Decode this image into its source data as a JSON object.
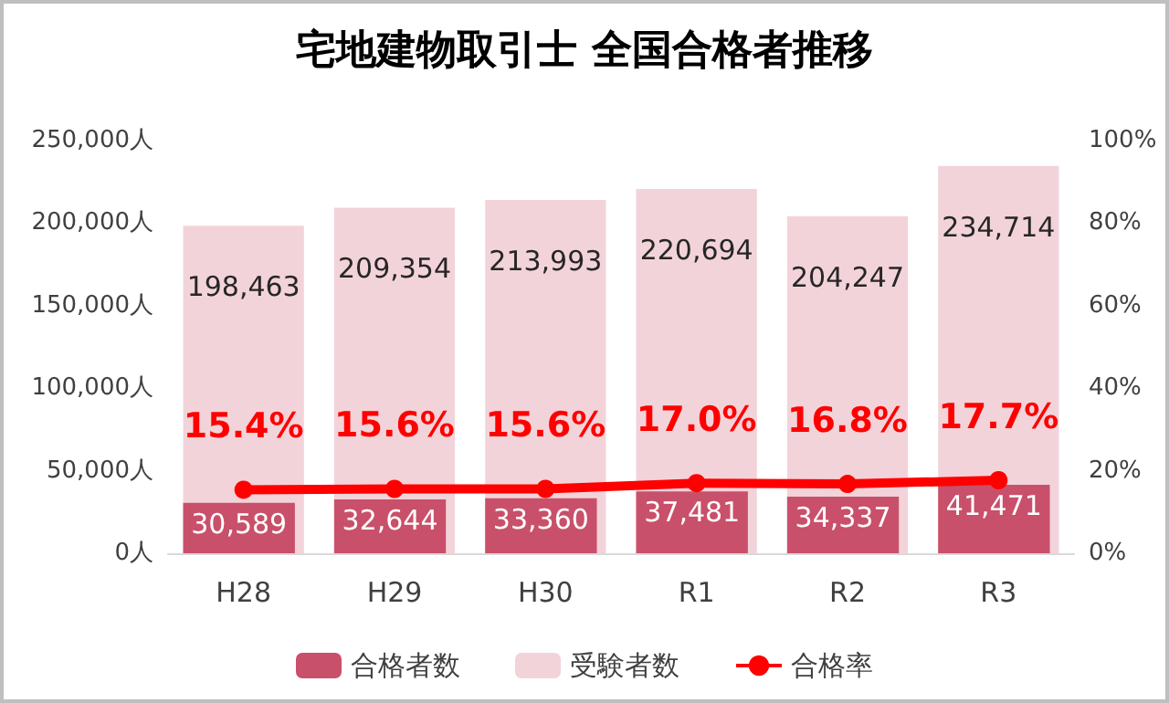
{
  "chart_data": {
    "type": "bar",
    "title": "宅地建物取引士 全国合格者推移",
    "categories": [
      "H28",
      "H29",
      "H30",
      "R1",
      "R2",
      "R3"
    ],
    "series": [
      {
        "name": "合格者数",
        "color": "#c9506a",
        "values": [
          30589,
          32644,
          33360,
          37481,
          34337,
          41471
        ],
        "value_labels": [
          "30,589",
          "32,644",
          "33,360",
          "37,481",
          "34,337",
          "41,471"
        ]
      },
      {
        "name": "受験者数",
        "color": "#f3d3da",
        "values": [
          198463,
          209354,
          213993,
          220694,
          204247,
          234714
        ],
        "value_labels": [
          "198,463",
          "209,354",
          "213,993",
          "220,694",
          "204,247",
          "234,714"
        ]
      },
      {
        "name": "合格率",
        "type": "line",
        "axis": "y2",
        "color": "#ff0000",
        "values": [
          15.4,
          15.6,
          15.6,
          17.0,
          16.8,
          17.7
        ],
        "value_labels": [
          "15.4%",
          "15.6%",
          "15.6%",
          "17.0%",
          "16.8%",
          "17.7%"
        ]
      }
    ],
    "ylim": [
      0,
      250000
    ],
    "yticks": [
      {
        "value": 0,
        "label": "0人"
      },
      {
        "value": 50000,
        "label": "50,000人"
      },
      {
        "value": 100000,
        "label": "100,000人"
      },
      {
        "value": 150000,
        "label": "150,000人"
      },
      {
        "value": 200000,
        "label": "200,000人"
      },
      {
        "value": 250000,
        "label": "250,000人"
      }
    ],
    "y2lim": [
      0,
      100
    ],
    "y2ticks": [
      {
        "value": 0,
        "label": "0%"
      },
      {
        "value": 20,
        "label": "20%"
      },
      {
        "value": 40,
        "label": "40%"
      },
      {
        "value": 60,
        "label": "60%"
      },
      {
        "value": 80,
        "label": "80%"
      },
      {
        "value": 100,
        "label": "100%"
      }
    ],
    "legend": "bottom",
    "marker": "circle",
    "grid": false
  }
}
